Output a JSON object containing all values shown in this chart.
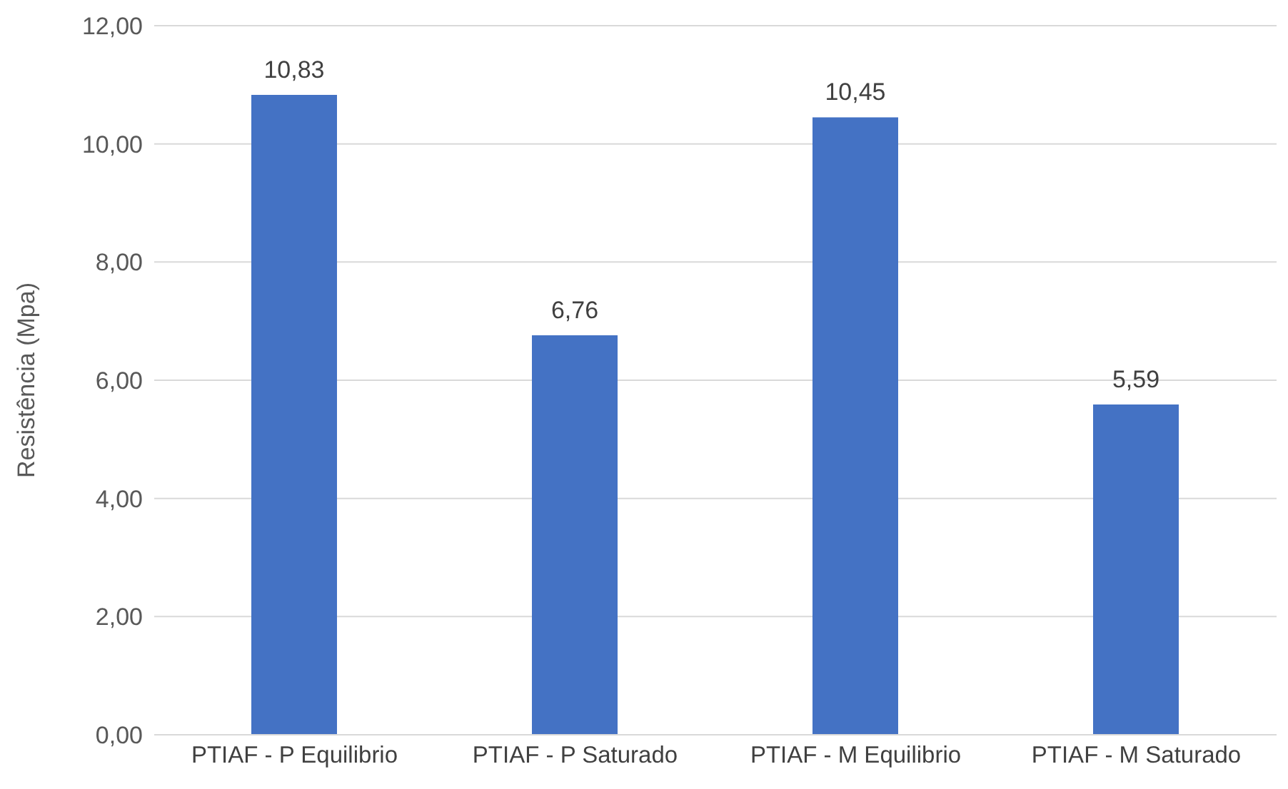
{
  "chart_data": {
    "type": "bar",
    "ylabel": "Resistência (Mpa)",
    "categories": [
      "PTIAF - P Equilibrio",
      "PTIAF - P Saturado",
      "PTIAF - M Equilibrio",
      "PTIAF - M Saturado"
    ],
    "values": [
      10.83,
      6.76,
      10.45,
      5.59
    ],
    "value_labels": [
      "10,83",
      "6,76",
      "10,45",
      "5,59"
    ],
    "color": "#4472c4",
    "ylim": [
      0,
      12
    ],
    "yticks": [
      {
        "value": 0,
        "label": "0,00"
      },
      {
        "value": 2,
        "label": "2,00"
      },
      {
        "value": 4,
        "label": "4,00"
      },
      {
        "value": 6,
        "label": "6,00"
      },
      {
        "value": 8,
        "label": "8,00"
      },
      {
        "value": 10,
        "label": "10,00"
      },
      {
        "value": 12,
        "label": "12,00"
      }
    ],
    "grid": "y"
  }
}
